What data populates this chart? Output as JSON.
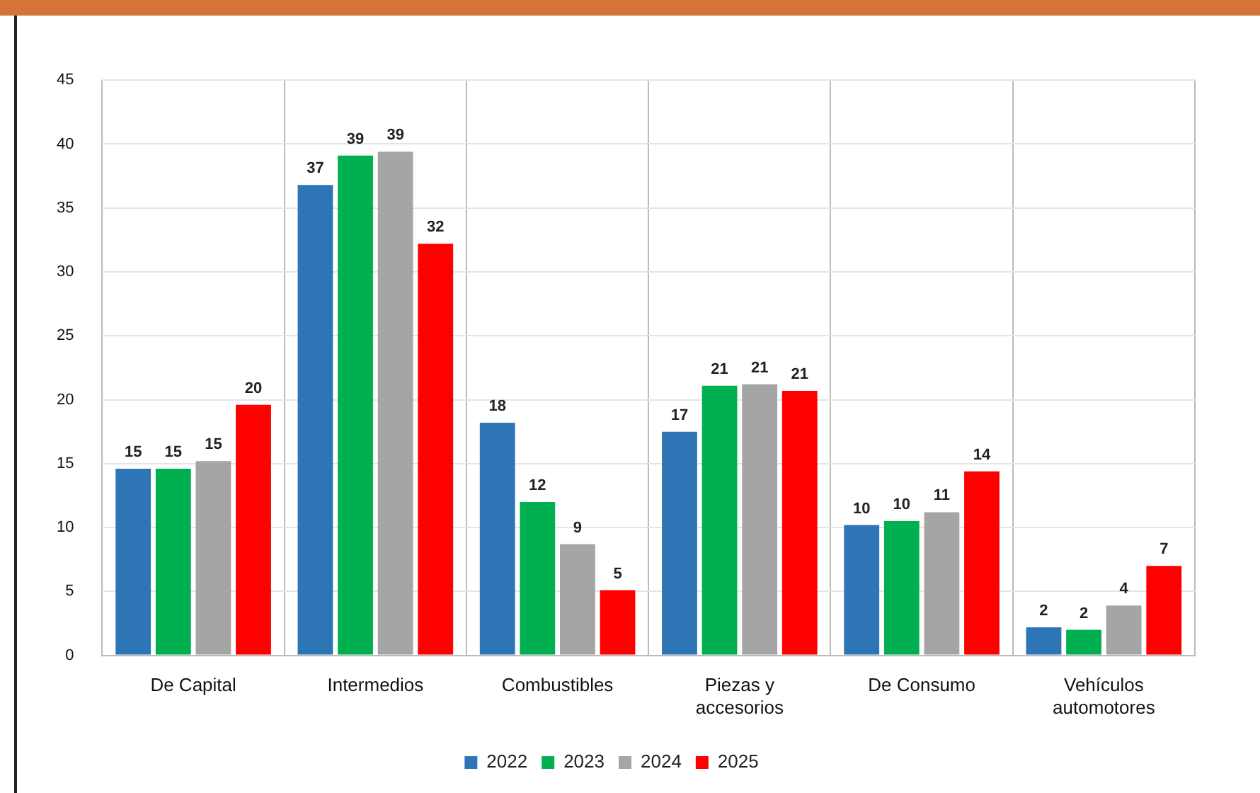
{
  "chart_data": {
    "type": "bar",
    "categories": [
      "De Capital",
      "Intermedios",
      "Combustibles",
      "Piezas y accesorios",
      "De Consumo",
      "Vehículos automotores"
    ],
    "series": [
      {
        "name": "2022",
        "color": "#2e75b6",
        "values": [
          14.6,
          36.8,
          18.2,
          17.5,
          10.2,
          2.2
        ],
        "value_labels": [
          "15",
          "37",
          "18",
          "17",
          "10",
          "2"
        ]
      },
      {
        "name": "2023",
        "color": "#00b050",
        "values": [
          14.6,
          39.1,
          12.0,
          21.1,
          10.5,
          2.0
        ],
        "value_labels": [
          "15",
          "39",
          "12",
          "21",
          "10",
          "2"
        ]
      },
      {
        "name": "2024",
        "color": "#a5a5a5",
        "values": [
          15.2,
          39.4,
          8.7,
          21.2,
          11.2,
          3.9
        ],
        "value_labels": [
          "15",
          "39",
          "9",
          "21",
          "11",
          "4"
        ]
      },
      {
        "name": "2025",
        "color": "#ff0000",
        "values": [
          19.6,
          32.2,
          5.1,
          20.7,
          14.4,
          7.0
        ],
        "value_labels": [
          "20",
          "32",
          "5",
          "21",
          "14",
          "7"
        ]
      }
    ],
    "ylim": [
      0,
      45
    ],
    "yticks": [
      0,
      5,
      10,
      15,
      20,
      25,
      30,
      35,
      40,
      45
    ],
    "grid": true,
    "legend": "bottom"
  }
}
